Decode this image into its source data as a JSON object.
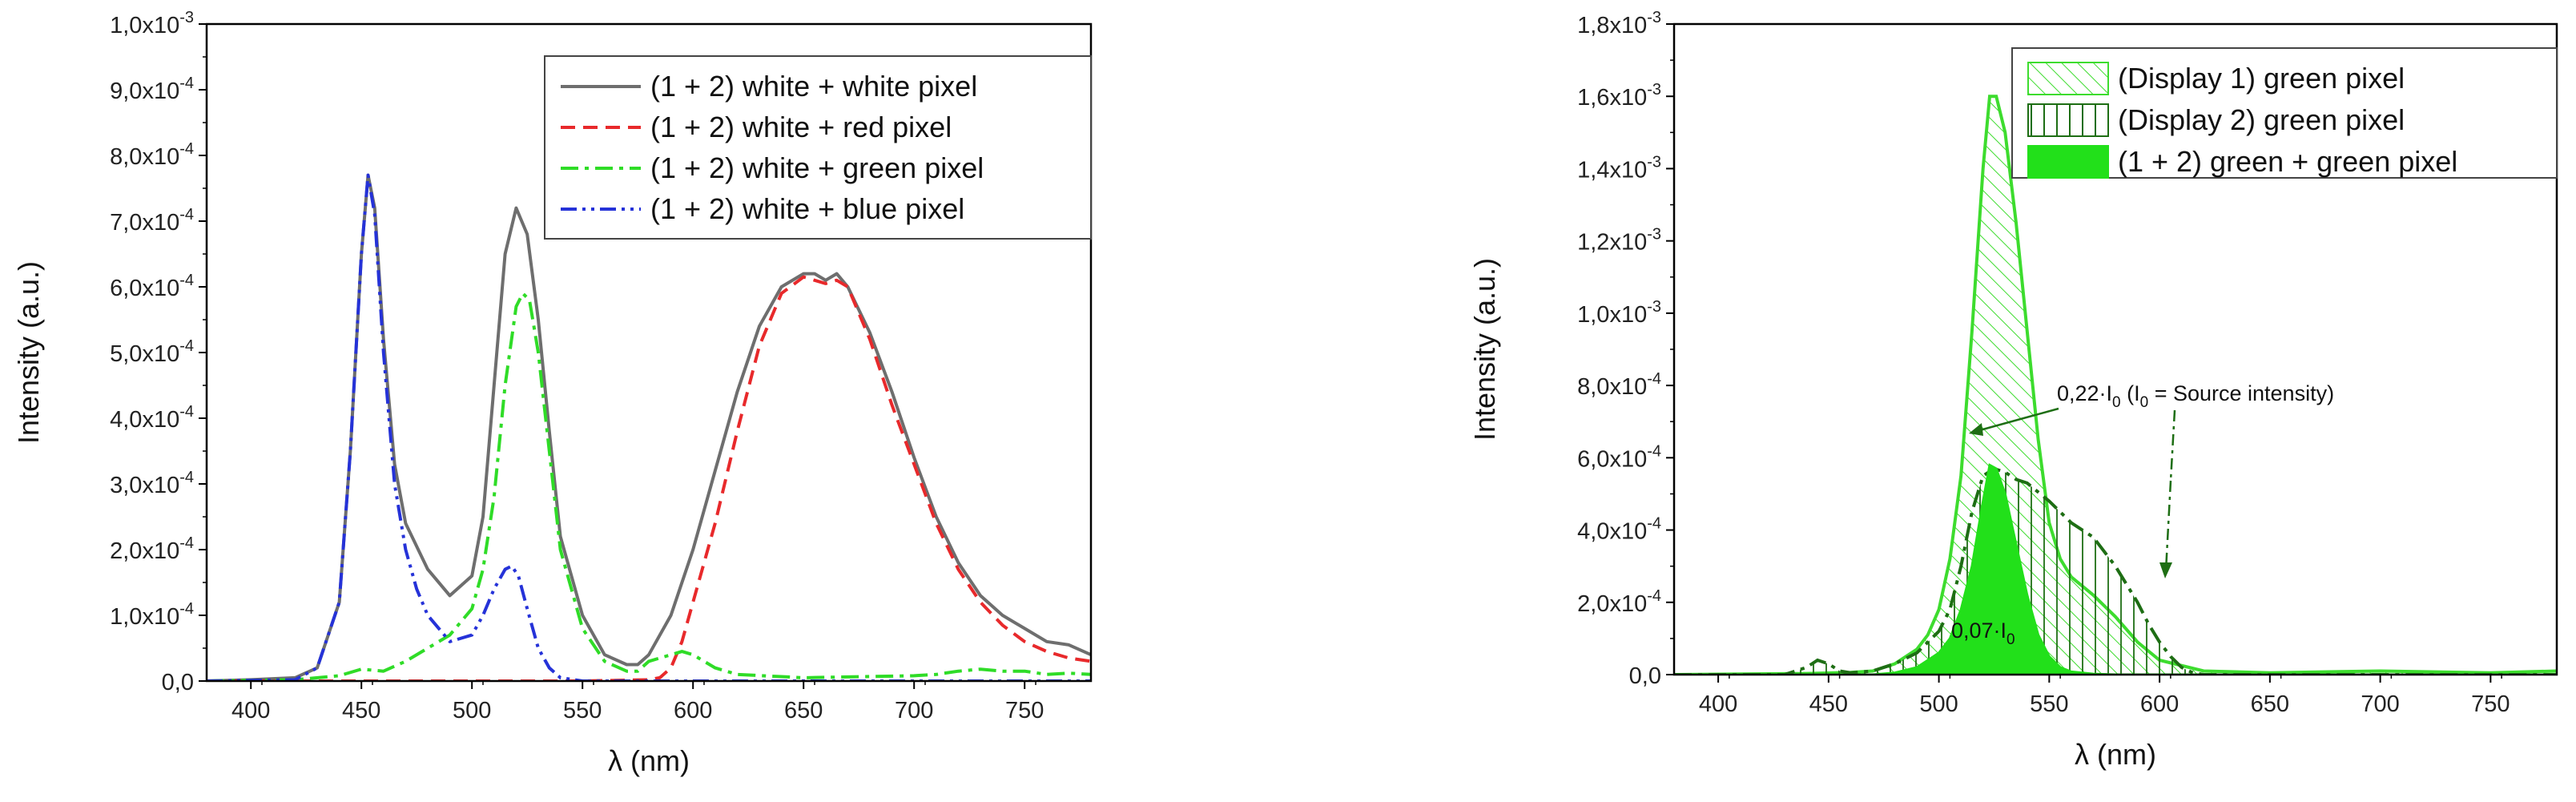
{
  "chart_data": [
    {
      "type": "line",
      "xlabel": "λ (nm)",
      "ylabel": "Intensity (a.u.)",
      "xlim": [
        380,
        780
      ],
      "ylim": [
        0,
        0.001
      ],
      "x_ticks": [
        "400",
        "450",
        "500",
        "550",
        "600",
        "650",
        "700",
        "750"
      ],
      "x_tick_values": [
        400,
        450,
        500,
        550,
        600,
        650,
        700,
        750
      ],
      "y_ticks": [
        {
          "value": 0,
          "mant": "0,0",
          "exp": ""
        },
        {
          "value": 0.0001,
          "mant": "1,0x10",
          "exp": "-4"
        },
        {
          "value": 0.0002,
          "mant": "2,0x10",
          "exp": "-4"
        },
        {
          "value": 0.0003,
          "mant": "3,0x10",
          "exp": "-4"
        },
        {
          "value": 0.0004,
          "mant": "4,0x10",
          "exp": "-4"
        },
        {
          "value": 0.0005,
          "mant": "5,0x10",
          "exp": "-4"
        },
        {
          "value": 0.0006,
          "mant": "6,0x10",
          "exp": "-4"
        },
        {
          "value": 0.0007,
          "mant": "7,0x10",
          "exp": "-4"
        },
        {
          "value": 0.0008,
          "mant": "8,0x10",
          "exp": "-4"
        },
        {
          "value": 0.0009,
          "mant": "9,0x10",
          "exp": "-4"
        },
        {
          "value": 0.001,
          "mant": "1,0x10",
          "exp": "-3"
        }
      ],
      "legend_position": "top-right",
      "series": [
        {
          "name": "(1 + 2) white + white pixel",
          "color": "#6e6e6e",
          "dash": "solid",
          "x": [
            380,
            400,
            420,
            430,
            440,
            445,
            450,
            453,
            456,
            460,
            465,
            470,
            480,
            490,
            500,
            505,
            510,
            515,
            520,
            525,
            530,
            535,
            540,
            550,
            560,
            570,
            575,
            580,
            590,
            600,
            610,
            620,
            630,
            640,
            650,
            655,
            660,
            665,
            670,
            680,
            690,
            700,
            710,
            720,
            730,
            740,
            750,
            760,
            770,
            780
          ],
          "y": [
            0,
            2e-06,
            5e-06,
            2e-05,
            0.00012,
            0.00035,
            0.00065,
            0.00077,
            0.00072,
            0.00052,
            0.00033,
            0.00024,
            0.00017,
            0.00013,
            0.00016,
            0.00025,
            0.00045,
            0.00065,
            0.00072,
            0.00068,
            0.00055,
            0.00038,
            0.00022,
            0.0001,
            4e-05,
            2.5e-05,
            2.5e-05,
            4e-05,
            0.0001,
            0.0002,
            0.00032,
            0.00044,
            0.00054,
            0.0006,
            0.00062,
            0.00062,
            0.00061,
            0.00062,
            0.0006,
            0.00053,
            0.00044,
            0.00034,
            0.00025,
            0.00018,
            0.00013,
            0.0001,
            8e-05,
            6e-05,
            5.5e-05,
            4e-05
          ]
        },
        {
          "name": "(1 + 2) white + red pixel",
          "color": "#e8292b",
          "dash": "18,10",
          "x": [
            380,
            450,
            500,
            550,
            580,
            585,
            590,
            595,
            600,
            610,
            620,
            630,
            640,
            650,
            655,
            660,
            665,
            670,
            680,
            690,
            700,
            710,
            720,
            730,
            740,
            750,
            760,
            770,
            780
          ],
          "y": [
            0,
            0,
            0,
            0,
            2e-06,
            5e-06,
            2e-05,
            6e-05,
            0.00012,
            0.00024,
            0.00038,
            0.00051,
            0.00059,
            0.000615,
            0.00061,
            0.000605,
            0.00061,
            0.0006,
            0.00052,
            0.00042,
            0.00033,
            0.00024,
            0.00017,
            0.00012,
            8.5e-05,
            6e-05,
            4.5e-05,
            3.5e-05,
            3e-05
          ]
        },
        {
          "name": "(1 + 2) white + green pixel",
          "color": "#2fdc27",
          "dash": "22,8,5,8",
          "x": [
            380,
            420,
            440,
            450,
            460,
            470,
            480,
            490,
            500,
            505,
            510,
            515,
            520,
            523,
            526,
            530,
            535,
            540,
            550,
            560,
            570,
            575,
            580,
            590,
            595,
            600,
            610,
            620,
            650,
            700,
            710,
            720,
            730,
            740,
            750,
            760,
            770,
            780
          ],
          "y": [
            0,
            2e-06,
            8e-06,
            1.8e-05,
            1.5e-05,
            3e-05,
            5e-05,
            7e-05,
            0.00011,
            0.00017,
            0.00028,
            0.00045,
            0.00057,
            0.00059,
            0.00058,
            0.0005,
            0.00035,
            0.0002,
            8e-05,
            3e-05,
            1.5e-05,
            1.5e-05,
            3e-05,
            4e-05,
            4.5e-05,
            4e-05,
            2e-05,
            1e-05,
            5e-06,
            8e-06,
            1e-05,
            1.5e-05,
            1.8e-05,
            1.5e-05,
            1.5e-05,
            1e-05,
            1.2e-05,
            1e-05
          ]
        },
        {
          "name": "(1 + 2) white + blue pixel",
          "color": "#2532d8",
          "dash": "20,7,4,7,4,7",
          "x": [
            380,
            420,
            430,
            440,
            445,
            450,
            453,
            456,
            460,
            465,
            470,
            475,
            480,
            490,
            500,
            505,
            510,
            515,
            518,
            521,
            525,
            530,
            535,
            540,
            550,
            600,
            650,
            700,
            750,
            780
          ],
          "y": [
            0,
            2e-06,
            2e-05,
            0.00012,
            0.00035,
            0.00065,
            0.00077,
            0.00071,
            0.0005,
            0.0003,
            0.0002,
            0.00014,
            0.0001,
            6e-05,
            7e-05,
            0.0001,
            0.00014,
            0.00017,
            0.000175,
            0.00016,
            0.00011,
            5e-05,
            2e-05,
            5e-06,
            0,
            0,
            0,
            0,
            0,
            0
          ]
        }
      ]
    },
    {
      "type": "line",
      "xlabel": "λ (nm)",
      "ylabel": "Intensity (a.u.)",
      "xlim": [
        380,
        780
      ],
      "ylim": [
        0,
        0.0018
      ],
      "x_ticks": [
        "400",
        "450",
        "500",
        "550",
        "600",
        "650",
        "700",
        "750"
      ],
      "x_tick_values": [
        400,
        450,
        500,
        550,
        600,
        650,
        700,
        750
      ],
      "y_ticks": [
        {
          "value": 0,
          "mant": "0,0",
          "exp": ""
        },
        {
          "value": 0.0002,
          "mant": "2,0x10",
          "exp": "-4"
        },
        {
          "value": 0.0004,
          "mant": "4,0x10",
          "exp": "-4"
        },
        {
          "value": 0.0006,
          "mant": "6,0x10",
          "exp": "-4"
        },
        {
          "value": 0.0008,
          "mant": "8,0x10",
          "exp": "-4"
        },
        {
          "value": 0.001,
          "mant": "1,0x10",
          "exp": "-3"
        },
        {
          "value": 0.0012,
          "mant": "1,2x10",
          "exp": "-3"
        },
        {
          "value": 0.0014,
          "mant": "1,4x10",
          "exp": "-3"
        },
        {
          "value": 0.0016,
          "mant": "1,6x10",
          "exp": "-3"
        },
        {
          "value": 0.0018,
          "mant": "1,8x10",
          "exp": "-3"
        }
      ],
      "legend_position": "top-right",
      "series": [
        {
          "name": "(Display 1) green pixel",
          "color": "#3ddc2e",
          "style": "diagonal-hatch",
          "x": [
            380,
            440,
            460,
            470,
            480,
            490,
            495,
            500,
            505,
            510,
            515,
            520,
            523,
            526,
            530,
            535,
            540,
            545,
            550,
            555,
            560,
            570,
            580,
            590,
            600,
            620,
            650,
            700,
            750,
            780
          ],
          "y": [
            0,
            3e-06,
            6e-06,
            1e-05,
            3e-05,
            7e-05,
            0.00011,
            0.00018,
            0.00032,
            0.00055,
            0.00095,
            0.0014,
            0.0016,
            0.0016,
            0.0015,
            0.00125,
            0.00095,
            0.00065,
            0.00042,
            0.00032,
            0.00027,
            0.00022,
            0.00016,
            9e-05,
            4e-05,
            1e-05,
            5e-06,
            1e-05,
            5e-06,
            1e-05
          ]
        },
        {
          "name": "(Display 2) green pixel",
          "color": "#1e6e14",
          "style": "vertical-hatch-dashdot",
          "x": [
            380,
            430,
            440,
            445,
            450,
            455,
            460,
            470,
            480,
            490,
            500,
            505,
            510,
            515,
            520,
            525,
            530,
            535,
            540,
            550,
            560,
            570,
            580,
            590,
            595,
            600,
            605,
            610,
            615,
            620,
            630,
            650,
            700,
            780
          ],
          "y": [
            0,
            0,
            2e-05,
            4e-05,
            3e-05,
            1e-05,
            5e-06,
            1e-05,
            3e-05,
            6e-05,
            0.00012,
            0.00018,
            0.0003,
            0.00045,
            0.00055,
            0.00057,
            0.00056,
            0.00054,
            0.00053,
            0.00048,
            0.00042,
            0.00038,
            0.0003,
            0.0002,
            0.00014,
            9e-05,
            5e-05,
            2e-05,
            5e-06,
            0,
            0,
            0,
            0,
            0
          ]
        },
        {
          "name": "(1 + 2) green + green pixel",
          "color": "#22e01a",
          "style": "filled",
          "x": [
            380,
            470,
            480,
            490,
            500,
            505,
            510,
            515,
            520,
            523,
            526,
            530,
            535,
            540,
            545,
            550,
            555,
            560,
            570,
            580,
            600,
            650,
            780
          ],
          "y": [
            0,
            0,
            5e-06,
            2e-05,
            6e-05,
            0.0001,
            0.00018,
            0.0003,
            0.00048,
            0.00058,
            0.00057,
            0.0005,
            0.00036,
            0.00022,
            0.00011,
            5e-05,
            2e-05,
            8e-06,
            2e-06,
            0,
            0,
            0,
            0
          ]
        }
      ],
      "annotations": [
        {
          "text_pre": "0,22·I",
          "sub": "0",
          "text_post": " (I",
          "sub2": "0",
          "text_end": " = Source intensity)"
        },
        {
          "text_pre": "0,07·I",
          "sub": "0"
        }
      ]
    }
  ]
}
